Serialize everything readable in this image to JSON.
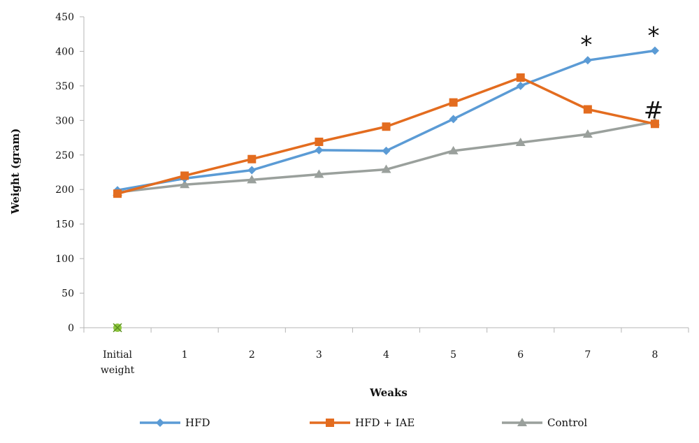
{
  "chart_data": {
    "type": "line",
    "ylabel": "Weight (gram)",
    "xlabel": "Weaks",
    "categories": [
      [
        "Initial",
        "weight"
      ],
      [
        "1"
      ],
      [
        "2"
      ],
      [
        "3"
      ],
      [
        "4"
      ],
      [
        "5"
      ],
      [
        "6"
      ],
      [
        "7"
      ],
      [
        "8"
      ]
    ],
    "ylim": [
      0,
      450
    ],
    "yticks": [
      0,
      50,
      100,
      150,
      200,
      250,
      300,
      350,
      400,
      450
    ],
    "grid": false,
    "legend_position": "bottom",
    "series": [
      {
        "name": "HFD",
        "color": "#5b9bd5",
        "marker": "diamond",
        "values": [
          199,
          216,
          228,
          257,
          256,
          302,
          350,
          387,
          401
        ]
      },
      {
        "name": "HFD + IAE",
        "color": "#e36c1f",
        "marker": "square",
        "values": [
          194,
          220,
          244,
          269,
          291,
          326,
          362,
          316,
          295
        ]
      },
      {
        "name": "Control",
        "color": "#9aa09c",
        "marker": "triangle",
        "values": [
          196,
          207,
          214,
          222,
          229,
          256,
          268,
          280,
          298
        ]
      }
    ],
    "extra_point": {
      "x_index": 0,
      "value": 0,
      "color": "#8ec63f",
      "marker": "x"
    },
    "annotations": [
      {
        "text": "*",
        "x_index": 7,
        "value": 410
      },
      {
        "text": "*",
        "x_index": 8,
        "value": 423
      },
      {
        "text": "#",
        "x_index": 8,
        "value": 315
      }
    ]
  }
}
